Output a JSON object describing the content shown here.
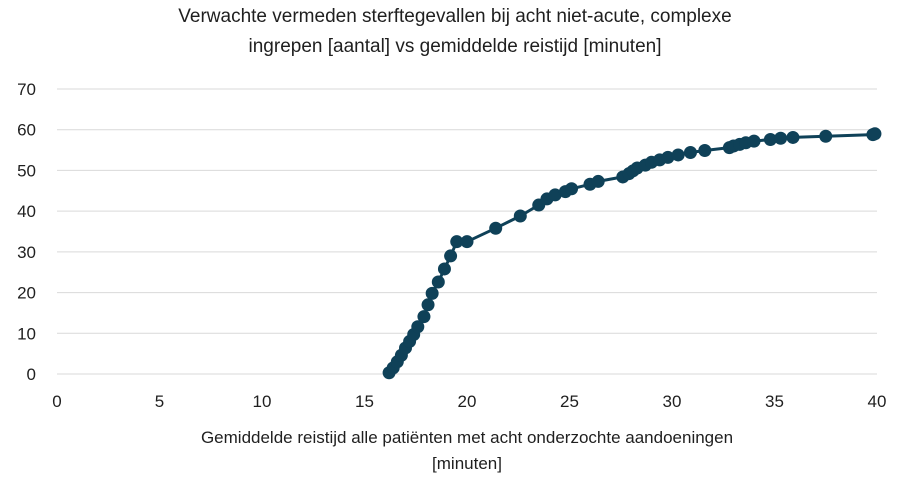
{
  "chart_data": {
    "type": "line",
    "title": "Verwachte vermeden sterftegevallen bij acht niet-acute, complexe ingrepen [aantal] vs gemiddelde reistijd [minuten]",
    "title_lines": [
      "Verwachte vermeden sterftegevallen bij acht niet-acute, complexe",
      "ingrepen [aantal] vs gemiddelde reistijd [minuten]"
    ],
    "xlabel": "Gemiddelde reistijd alle patiënten met acht onderzochte aandoeningen [minuten]",
    "xlabel_lines": [
      "Gemiddelde reistijd alle patiënten met acht onderzochte aandoeningen",
      "[minuten]"
    ],
    "ylabel": "",
    "xlim": [
      0,
      40
    ],
    "ylim": [
      0,
      70
    ],
    "xticks": [
      0,
      5,
      10,
      15,
      20,
      25,
      30,
      35,
      40
    ],
    "yticks": [
      0,
      10,
      20,
      30,
      40,
      50,
      60,
      70
    ],
    "grid": "horizontal",
    "legend": "none",
    "series": [
      {
        "color": "#0f4158",
        "marker": "circle",
        "x": [
          16.2,
          16.4,
          16.6,
          16.8,
          17.0,
          17.2,
          17.4,
          17.6,
          17.9,
          18.1,
          18.3,
          18.6,
          18.9,
          19.2,
          19.5,
          20.0,
          21.4,
          22.6,
          23.5,
          23.9,
          24.3,
          24.8,
          25.1,
          26.0,
          26.4,
          27.6,
          27.9,
          28.1,
          28.3,
          28.7,
          29.0,
          29.4,
          29.8,
          30.3,
          30.9,
          31.6,
          32.8,
          33.0,
          33.3,
          33.6,
          34.0,
          34.8,
          35.3,
          35.9,
          37.5,
          39.8,
          39.9
        ],
        "y": [
          0.3,
          1.5,
          3.0,
          4.6,
          6.4,
          8.0,
          9.7,
          11.6,
          14.1,
          17.0,
          19.8,
          22.6,
          25.8,
          29.0,
          32.5,
          32.5,
          35.8,
          38.8,
          41.5,
          43.0,
          44.0,
          44.8,
          45.5,
          46.6,
          47.3,
          48.4,
          49.2,
          49.9,
          50.6,
          51.3,
          52.0,
          52.6,
          53.2,
          53.8,
          54.4,
          54.9,
          55.6,
          56.0,
          56.4,
          56.8,
          57.2,
          57.6,
          57.9,
          58.1,
          58.4,
          58.8,
          59.0
        ]
      }
    ]
  }
}
